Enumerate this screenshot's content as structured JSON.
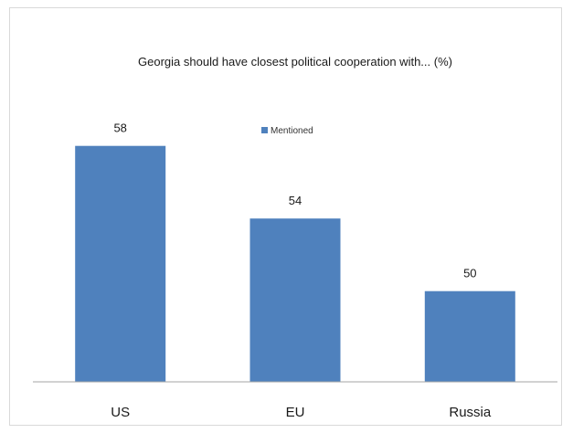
{
  "chart_data": {
    "type": "bar",
    "title": "Georgia should have closest political cooperation with... (%)",
    "categories": [
      "US",
      "EU",
      "Russia"
    ],
    "series": [
      {
        "name": "Mentioned",
        "values": [
          58,
          54,
          50
        ]
      }
    ],
    "data_labels": [
      "58",
      "54",
      "50"
    ],
    "ylim": [
      45,
      60
    ],
    "grid": false,
    "legend_position": "top-center",
    "colors": {
      "series": "#4f81bd",
      "axis": "#a6a6a6"
    }
  }
}
